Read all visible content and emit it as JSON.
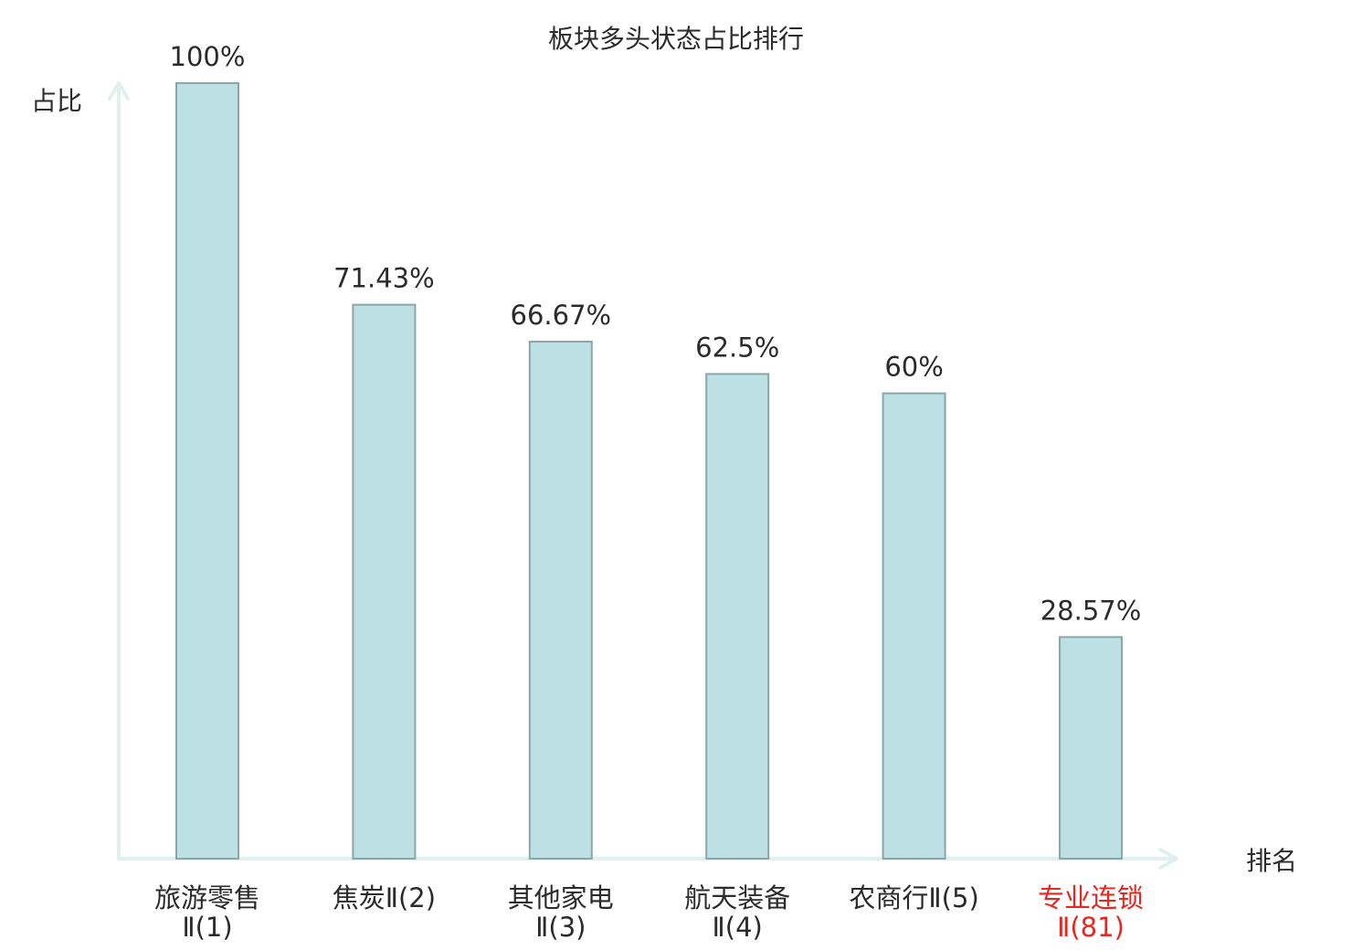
{
  "chart_data": {
    "type": "bar",
    "title": "板块多头状态占比排行",
    "ylabel": "占比",
    "xlabel": "排名",
    "ylim": [
      0,
      100
    ],
    "grid": false,
    "categories": [
      [
        "旅游零售",
        "Ⅱ(1)"
      ],
      [
        "焦炭Ⅱ(2)"
      ],
      [
        "其他家电",
        "Ⅱ(3)"
      ],
      [
        "航天装备",
        "Ⅱ(4)"
      ],
      [
        "农商行Ⅱ(5)"
      ],
      [
        "专业连锁",
        "Ⅱ(81)"
      ]
    ],
    "values": [
      100,
      71.43,
      66.67,
      62.5,
      60,
      28.57
    ],
    "data_labels": [
      "100%",
      "71.43%",
      "66.67%",
      "62.5%",
      "60%",
      "28.57%"
    ],
    "highlight_index": 5,
    "colors": {
      "bar_fill": "#bce0e3",
      "bar_stroke": "#8aa6aa",
      "axis": "#dff1ef",
      "text": "#2b2b2b",
      "highlight_text": "#e8251f"
    }
  }
}
